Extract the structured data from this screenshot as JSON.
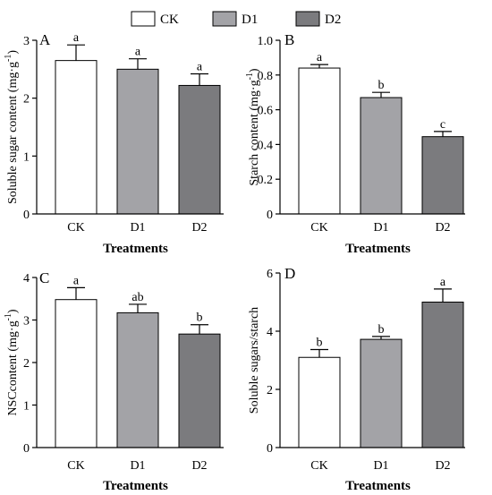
{
  "legend": {
    "position": "top-center",
    "items": [
      {
        "label": "CK",
        "color": "#ffffff"
      },
      {
        "label": "D1",
        "color": "#a3a3a7"
      },
      {
        "label": "D2",
        "color": "#7b7b7e"
      }
    ]
  },
  "chart_data": [
    {
      "type": "bar",
      "panel_label": "A",
      "categories": [
        "CK",
        "D1",
        "D2"
      ],
      "values": [
        2.65,
        2.5,
        2.22
      ],
      "errors": [
        0.27,
        0.18,
        0.2
      ],
      "significance": [
        "a",
        "a",
        "a"
      ],
      "colors": [
        "#ffffff",
        "#a3a3a7",
        "#7b7b7e"
      ],
      "xlabel": "Treatments",
      "ylabel": "Soluble sugar content (mg·g",
      "ylabel_sup": "-1",
      "ylabel_close": ")",
      "ylim": [
        0,
        3
      ],
      "yticks": [
        0,
        1,
        2,
        3
      ],
      "ytick_labels": [
        "0",
        "1",
        "2",
        "3"
      ]
    },
    {
      "type": "bar",
      "panel_label": "B",
      "categories": [
        "CK",
        "D1",
        "D2"
      ],
      "values": [
        0.84,
        0.67,
        0.445
      ],
      "errors": [
        0.02,
        0.03,
        0.03
      ],
      "significance": [
        "a",
        "b",
        "c"
      ],
      "colors": [
        "#ffffff",
        "#a3a3a7",
        "#7b7b7e"
      ],
      "xlabel": "Treatments",
      "ylabel": "Starch content (mg·g",
      "ylabel_sup": "-1",
      "ylabel_close": ")",
      "ylim": [
        0,
        1
      ],
      "yticks": [
        0,
        0.2,
        0.4,
        0.6,
        0.8,
        1.0
      ],
      "ytick_labels": [
        "0",
        "0.2",
        "0.4",
        "0.6",
        "0.8",
        "1.0"
      ]
    },
    {
      "type": "bar",
      "panel_label": "C",
      "categories": [
        "CK",
        "D1",
        "D2"
      ],
      "values": [
        3.48,
        3.17,
        2.67
      ],
      "errors": [
        0.28,
        0.2,
        0.22
      ],
      "significance": [
        "a",
        "ab",
        "b"
      ],
      "colors": [
        "#ffffff",
        "#a3a3a7",
        "#7b7b7e"
      ],
      "xlabel": "Treatments",
      "ylabel": "NSCcontent (mg·g",
      "ylabel_sup": "-1",
      "ylabel_close": ")",
      "ylim": [
        0,
        4
      ],
      "yticks": [
        0,
        1,
        2,
        3,
        4
      ],
      "ytick_labels": [
        "0",
        "1",
        "2",
        "3",
        "4"
      ]
    },
    {
      "type": "bar",
      "panel_label": "D",
      "categories": [
        "CK",
        "D1",
        "D2"
      ],
      "values": [
        3.1,
        3.72,
        5.0
      ],
      "errors": [
        0.27,
        0.1,
        0.45
      ],
      "significance": [
        "b",
        "b",
        "a"
      ],
      "colors": [
        "#ffffff",
        "#a3a3a7",
        "#7b7b7e"
      ],
      "xlabel": "Treatments",
      "ylabel": "Soluble sugars/starch",
      "ylabel_sup": "",
      "ylabel_close": "",
      "ylim": [
        0,
        6
      ],
      "yticks": [
        0,
        2,
        4,
        6
      ],
      "ytick_labels": [
        "0",
        "2",
        "4",
        "6"
      ]
    }
  ]
}
